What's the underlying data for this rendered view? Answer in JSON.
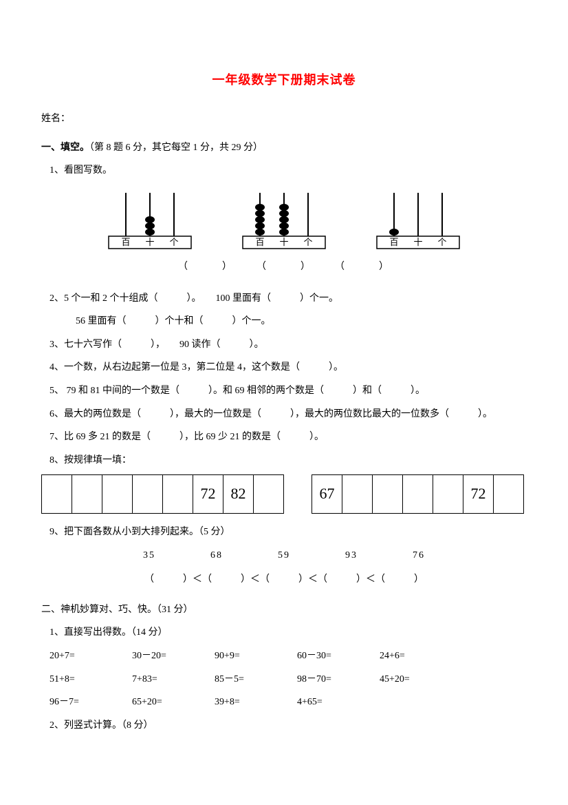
{
  "title": "一年级数学下册期末试卷",
  "name_label": "姓名：",
  "section1": {
    "head_bold": "一、填空。",
    "head_rest": "（第 8 题 6 分，其它每空 1 分，共 29 分）",
    "q1": "1、看图写数。",
    "abacus_labels": [
      "百",
      "十",
      "个"
    ],
    "paren_row": "（　　　）　　　（　　　）　　　（　　　）",
    "q2a": "2、5 个一和 2 个十组成（　　　）。　　100 里面有（　　　）个一。",
    "q2b": "56 里面有（　　　）个十和（　　　）个一。",
    "q3": "3、七十六写作（　　　），　　90 读作（　　　）。",
    "q4": "4、一个数，从右边起第一位是 3，第二位是 4，这个数是（　　　）。",
    "q5": "5、 79 和 81 中间的一个数是（　　　）。和 69 相邻的两个数是（　　　）和（　　　）。",
    "q6": "6、最大的两位数是（　　　），最大的一位数是（　　　），最大的两位数比最大的一位数多（　　　）。",
    "q7": "7、比 69 多 21 的数是（　　　），比 69 少 21 的数是（　　　）。",
    "q8": "8、按规律填一填：",
    "seq1": [
      "",
      "",
      "",
      "",
      "",
      "72",
      "82",
      ""
    ],
    "seq2": [
      "67",
      "",
      "",
      "",
      "",
      "72",
      ""
    ],
    "q9": "9、把下面各数从小到大排列起来。（5 分）",
    "sort_nums": "35　　　　　68　　　　　59　　　　　93　　　　　76",
    "sort_parens": "（　　　）＜（　　　）＜（　　　）＜（　　　）＜（　　　）"
  },
  "section2": {
    "head": "二、神机妙算对、巧、快。（31 分）",
    "q1": "1、直接写出得数。（14 分）",
    "row1": [
      "20+7=",
      "30－20=",
      "90+9=",
      "60－30=",
      "24+6="
    ],
    "row2": [
      "51+8=",
      "7+83=",
      "85－5=",
      "98－70=",
      "45+20="
    ],
    "row3": [
      "96－7=",
      "65+20=",
      "39+8=",
      "4+65=",
      ""
    ],
    "q2": "2、列竖式计算。（8 分）"
  },
  "abacus_cfg": [
    {
      "beads": [
        0,
        3,
        0
      ]
    },
    {
      "beads": [
        5,
        5,
        0
      ]
    },
    {
      "beads": [
        1,
        0,
        0
      ]
    }
  ]
}
